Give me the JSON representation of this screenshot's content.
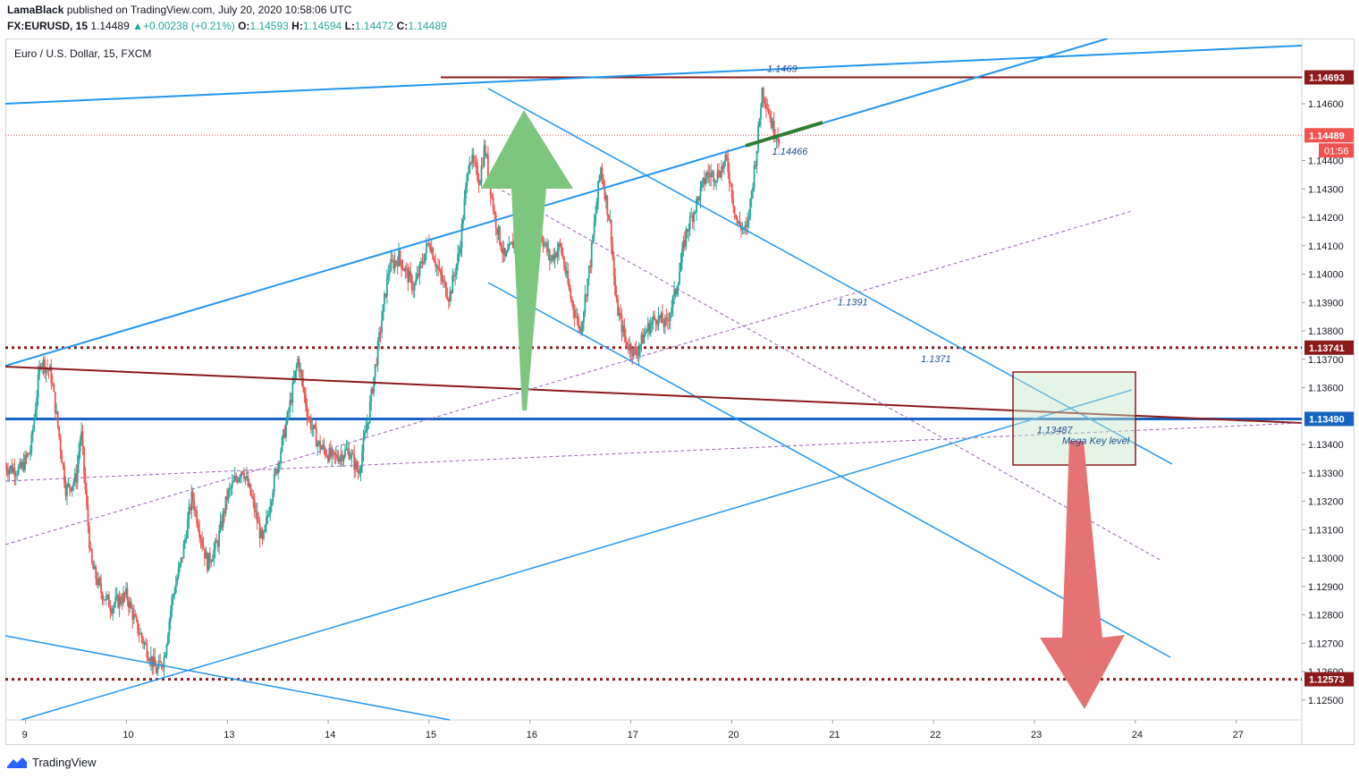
{
  "header": {
    "author": "LamaBlack",
    "published_text": "published on TradingView.com, July 20, 2020 10:58:06 UTC",
    "symbol": "FX:EURUSD, 15",
    "last": "1.14489",
    "change": "+0.00238 (+0.21%)",
    "o_label": "O:",
    "o": "1.14593",
    "h_label": "H:",
    "h": "1.14594",
    "l_label": "L:",
    "l": "1.14472",
    "c_label": "C:",
    "c": "1.14489"
  },
  "chart_title": "Euro / U.S. Dollar, 15, FXCM",
  "footer": {
    "brand": "TradingView"
  },
  "colors": {
    "up": "#26a69a",
    "down": "#ef5350",
    "trend": "#2196f3",
    "darkred": "#8b1a1a",
    "blue_level": "#1565c0",
    "purple": "#9c5fb5",
    "green_arrow": "#7dc67e",
    "red_arrow": "#e57373",
    "axis_text": "#131722"
  },
  "chart_data": {
    "type": "candlestick",
    "title": "Euro / U.S. Dollar, 15, FXCM",
    "ylim": [
      1.1243,
      1.1483
    ],
    "xlim": [
      0,
      25.7
    ],
    "y_ticks": [
      "1.14600",
      "1.14400",
      "1.14300",
      "1.14200",
      "1.14100",
      "1.14000",
      "1.13900",
      "1.13800",
      "1.13700",
      "1.13600",
      "1.13400",
      "1.13300",
      "1.13200",
      "1.13100",
      "1.13000",
      "1.12900",
      "1.12800",
      "1.12700",
      "1.12600",
      "1.12500"
    ],
    "x_ticks": [
      {
        "label": "9",
        "x": 0.4
      },
      {
        "label": "10",
        "x": 2.4
      },
      {
        "label": "13",
        "x": 4.4
      },
      {
        "label": "14",
        "x": 6.4
      },
      {
        "label": "15",
        "x": 8.4
      },
      {
        "label": "16",
        "x": 10.4
      },
      {
        "label": "17",
        "x": 12.4
      },
      {
        "label": "20",
        "x": 14.4
      },
      {
        "label": "21",
        "x": 16.4
      },
      {
        "label": "22",
        "x": 18.4
      },
      {
        "label": "23",
        "x": 20.4
      },
      {
        "label": "24",
        "x": 22.4
      },
      {
        "label": "27",
        "x": 24.4
      }
    ],
    "price_tags": [
      {
        "label": "1.14693",
        "price": 1.14693,
        "color": "#8b1a1a"
      },
      {
        "label": "1.14489",
        "price": 1.14489,
        "color": "#ef5350"
      },
      {
        "label": "1.13741",
        "price": 1.13741,
        "color": "#8b1a1a"
      },
      {
        "label": "1.13490",
        "price": 1.1349,
        "color": "#1565c0"
      },
      {
        "label": "1.12573",
        "price": 1.12573,
        "color": "#8b1a1a"
      }
    ],
    "countdown": "01:56",
    "annotations": [
      {
        "text": "1.1469",
        "x": 15.1,
        "y": 1.14712
      },
      {
        "text": "1.14466",
        "x": 15.2,
        "y": 1.1442
      },
      {
        "text": "1.1391",
        "x": 16.5,
        "y": 1.1389
      },
      {
        "text": "1.1371",
        "x": 18.15,
        "y": 1.1369
      },
      {
        "text": "1.13487",
        "x": 20.45,
        "y": 1.1344
      },
      {
        "text": "Mega Key level",
        "x": 20.95,
        "y": 1.13402
      }
    ],
    "path_points": [
      [
        0,
        1.1332
      ],
      [
        0.3,
        1.1331
      ],
      [
        0.5,
        1.1338
      ],
      [
        0.7,
        1.137
      ],
      [
        0.9,
        1.1365
      ],
      [
        1.05,
        1.1345
      ],
      [
        1.2,
        1.1324
      ],
      [
        1.4,
        1.1328
      ],
      [
        1.5,
        1.1345
      ],
      [
        1.6,
        1.132
      ],
      [
        1.7,
        1.1298
      ],
      [
        1.9,
        1.1288
      ],
      [
        2.1,
        1.1283
      ],
      [
        2.4,
        1.1287
      ],
      [
        2.6,
        1.1276
      ],
      [
        2.8,
        1.1268
      ],
      [
        3.0,
        1.126
      ],
      [
        3.15,
        1.1265
      ],
      [
        3.3,
        1.1285
      ],
      [
        3.5,
        1.13
      ],
      [
        3.7,
        1.1322
      ],
      [
        3.85,
        1.131
      ],
      [
        4.0,
        1.1298
      ],
      [
        4.2,
        1.1305
      ],
      [
        4.4,
        1.1322
      ],
      [
        4.7,
        1.1332
      ],
      [
        4.9,
        1.132
      ],
      [
        5.1,
        1.1305
      ],
      [
        5.3,
        1.1325
      ],
      [
        5.6,
        1.135
      ],
      [
        5.8,
        1.137
      ],
      [
        6.0,
        1.135
      ],
      [
        6.2,
        1.134
      ],
      [
        6.5,
        1.1335
      ],
      [
        6.8,
        1.1338
      ],
      [
        7.0,
        1.133
      ],
      [
        7.2,
        1.135
      ],
      [
        7.4,
        1.1376
      ],
      [
        7.6,
        1.1402
      ],
      [
        7.8,
        1.1406
      ],
      [
        8.1,
        1.1395
      ],
      [
        8.4,
        1.1412
      ],
      [
        8.6,
        1.14
      ],
      [
        8.8,
        1.1392
      ],
      [
        9.0,
        1.1408
      ],
      [
        9.2,
        1.1442
      ],
      [
        9.4,
        1.1433
      ],
      [
        9.5,
        1.1445
      ],
      [
        9.7,
        1.142
      ],
      [
        9.9,
        1.1405
      ],
      [
        10.1,
        1.1412
      ],
      [
        10.3,
        1.1418
      ],
      [
        10.6,
        1.1415
      ],
      [
        10.8,
        1.1405
      ],
      [
        11.0,
        1.141
      ],
      [
        11.2,
        1.1392
      ],
      [
        11.4,
        1.138
      ],
      [
        11.6,
        1.1405
      ],
      [
        11.8,
        1.1438
      ],
      [
        12.0,
        1.1416
      ],
      [
        12.1,
        1.139
      ],
      [
        12.3,
        1.1376
      ],
      [
        12.5,
        1.1372
      ],
      [
        12.7,
        1.138
      ],
      [
        12.9,
        1.1385
      ],
      [
        13.1,
        1.1382
      ],
      [
        13.3,
        1.1395
      ],
      [
        13.5,
        1.1415
      ],
      [
        13.7,
        1.1425
      ],
      [
        13.9,
        1.1435
      ],
      [
        14.1,
        1.1435
      ],
      [
        14.3,
        1.144
      ],
      [
        14.5,
        1.1418
      ],
      [
        14.7,
        1.1415
      ],
      [
        14.9,
        1.1445
      ],
      [
        15.0,
        1.1465
      ],
      [
        15.1,
        1.146
      ],
      [
        15.2,
        1.1452
      ],
      [
        15.35,
        1.1448
      ]
    ]
  }
}
